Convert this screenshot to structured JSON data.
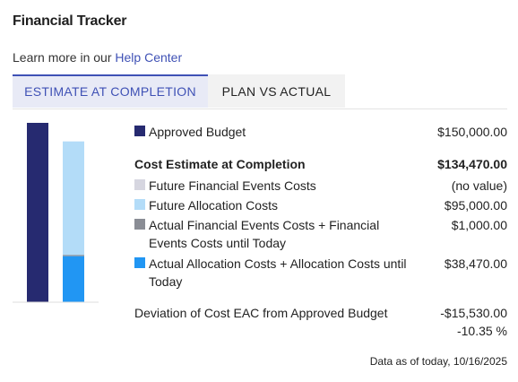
{
  "header": {
    "title": "Financial Tracker"
  },
  "help": {
    "prefix": "Learn more in our",
    "link": "Help Center"
  },
  "tabs": [
    {
      "label": "ESTIMATE AT COMPLETION",
      "active": true
    },
    {
      "label": "PLAN VS ACTUAL",
      "active": false
    }
  ],
  "colors": {
    "approved": "#262a70",
    "future_financial": "#d6d6e0",
    "future_allocation": "#b3dcf8",
    "actual_financial": "#8a8d95",
    "actual_allocation": "#2196f3"
  },
  "bars": {
    "approved_budget": 150000,
    "future_allocation": 95000,
    "actual_allocation": 38470,
    "actual_financial": 1000
  },
  "summary": {
    "approved_label": "Approved Budget",
    "approved_value": "$150,000.00",
    "eac_label": "Cost Estimate at Completion",
    "eac_value": "$134,470.00",
    "items": [
      {
        "label": "Future Financial Events Costs",
        "value": "(no value)"
      },
      {
        "label": "Future Allocation Costs",
        "value": "$95,000.00"
      },
      {
        "label": "Actual Financial Events Costs + Financial Events Costs until Today",
        "value": "$1,000.00"
      },
      {
        "label": "Actual Allocation Costs + Allocation Costs until Today",
        "value": "$38,470.00"
      }
    ],
    "deviation_label": "Deviation of Cost EAC from Approved Budget",
    "deviation_value": "-$15,530.00",
    "deviation_percent": "-10.35 %"
  },
  "footer": {
    "as_of": "Data as of today, 10/16/2025"
  }
}
